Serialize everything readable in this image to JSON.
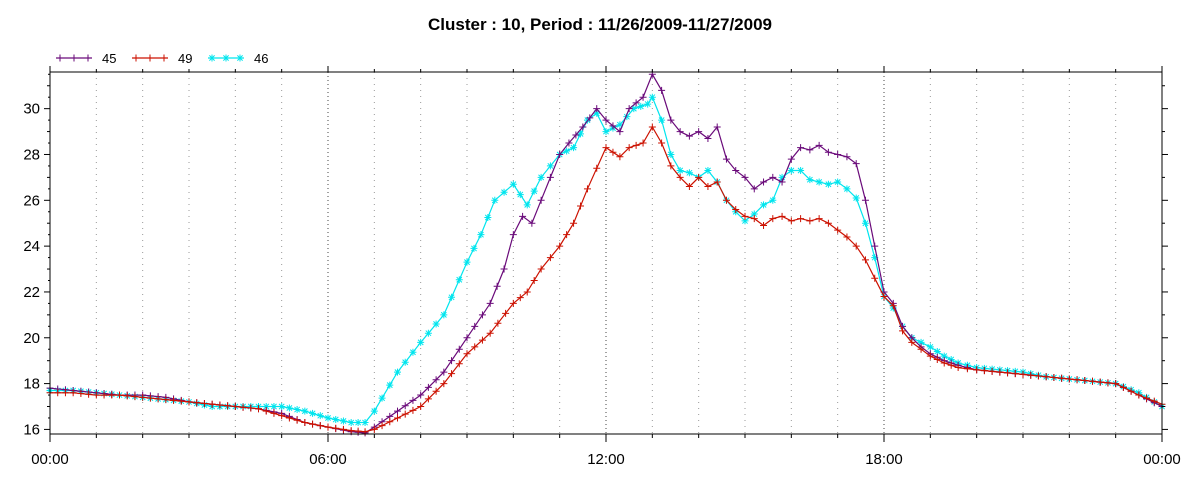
{
  "chart_data": {
    "type": "line",
    "title": "Cluster : 10, Period : 11/26/2009-11/27/2009",
    "xlabel": "",
    "ylabel": "",
    "x_ticks": [
      "00:00",
      "06:00",
      "12:00",
      "18:00",
      "00:00"
    ],
    "x_range_hours": [
      0,
      24
    ],
    "ylim": [
      15.8,
      31.6
    ],
    "y_ticks": [
      16,
      18,
      20,
      22,
      24,
      26,
      28,
      30
    ],
    "grid": "vertical dotted",
    "legend_position": "top-left",
    "series": [
      {
        "name": "45",
        "color": "#6a0a7a",
        "marker": "plus",
        "points": [
          [
            0,
            17.8
          ],
          [
            0.5,
            17.7
          ],
          [
            1,
            17.6
          ],
          [
            1.5,
            17.5
          ],
          [
            2,
            17.5
          ],
          [
            2.5,
            17.4
          ],
          [
            3,
            17.2
          ],
          [
            3.5,
            17.1
          ],
          [
            4,
            17.0
          ],
          [
            4.5,
            16.9
          ],
          [
            5,
            16.7
          ],
          [
            5.5,
            16.3
          ],
          [
            6,
            16.1
          ],
          [
            6.5,
            15.9
          ],
          [
            6.8,
            15.85
          ],
          [
            7.0,
            16.1
          ],
          [
            7.5,
            16.8
          ],
          [
            8,
            17.5
          ],
          [
            8.5,
            18.5
          ],
          [
            9,
            20.0
          ],
          [
            9.5,
            21.5
          ],
          [
            9.8,
            23.0
          ],
          [
            10.0,
            24.5
          ],
          [
            10.2,
            25.3
          ],
          [
            10.4,
            25.0
          ],
          [
            10.6,
            26.0
          ],
          [
            10.8,
            27.0
          ],
          [
            11.0,
            28.0
          ],
          [
            11.2,
            28.5
          ],
          [
            11.5,
            29.2
          ],
          [
            11.8,
            30.0
          ],
          [
            12.0,
            29.5
          ],
          [
            12.3,
            29.0
          ],
          [
            12.5,
            30.0
          ],
          [
            12.8,
            30.5
          ],
          [
            13.0,
            31.5
          ],
          [
            13.2,
            30.8
          ],
          [
            13.4,
            29.5
          ],
          [
            13.6,
            29.0
          ],
          [
            13.8,
            28.8
          ],
          [
            14.0,
            29.0
          ],
          [
            14.2,
            28.7
          ],
          [
            14.4,
            29.2
          ],
          [
            14.6,
            27.8
          ],
          [
            14.8,
            27.3
          ],
          [
            15.0,
            27.0
          ],
          [
            15.2,
            26.5
          ],
          [
            15.4,
            26.8
          ],
          [
            15.6,
            27.0
          ],
          [
            15.8,
            26.8
          ],
          [
            16.0,
            27.8
          ],
          [
            16.2,
            28.3
          ],
          [
            16.4,
            28.2
          ],
          [
            16.6,
            28.4
          ],
          [
            16.8,
            28.1
          ],
          [
            17.0,
            28.0
          ],
          [
            17.2,
            27.9
          ],
          [
            17.4,
            27.6
          ],
          [
            17.6,
            26.0
          ],
          [
            17.8,
            24.0
          ],
          [
            18.0,
            22.0
          ],
          [
            18.2,
            21.5
          ],
          [
            18.4,
            20.5
          ],
          [
            18.6,
            20.0
          ],
          [
            18.8,
            19.6
          ],
          [
            19.0,
            19.3
          ],
          [
            19.3,
            19.0
          ],
          [
            19.6,
            18.8
          ],
          [
            20,
            18.6
          ],
          [
            20.5,
            18.5
          ],
          [
            21,
            18.4
          ],
          [
            21.5,
            18.3
          ],
          [
            22,
            18.2
          ],
          [
            22.5,
            18.1
          ],
          [
            23,
            18.0
          ],
          [
            23.5,
            17.5
          ],
          [
            24,
            17.0
          ]
        ]
      },
      {
        "name": "49",
        "color": "#cc1100",
        "marker": "plus",
        "points": [
          [
            0,
            17.6
          ],
          [
            0.5,
            17.6
          ],
          [
            1,
            17.5
          ],
          [
            1.5,
            17.5
          ],
          [
            2,
            17.4
          ],
          [
            2.5,
            17.3
          ],
          [
            3,
            17.2
          ],
          [
            3.5,
            17.1
          ],
          [
            4,
            17.0
          ],
          [
            4.5,
            16.9
          ],
          [
            5,
            16.6
          ],
          [
            5.5,
            16.3
          ],
          [
            6,
            16.1
          ],
          [
            6.5,
            15.95
          ],
          [
            6.8,
            15.9
          ],
          [
            7.0,
            16.0
          ],
          [
            7.5,
            16.5
          ],
          [
            8,
            17.0
          ],
          [
            8.5,
            18.0
          ],
          [
            9,
            19.3
          ],
          [
            9.5,
            20.2
          ],
          [
            10,
            21.5
          ],
          [
            10.3,
            22.0
          ],
          [
            10.6,
            23.0
          ],
          [
            11,
            24.0
          ],
          [
            11.3,
            25.0
          ],
          [
            11.6,
            26.5
          ],
          [
            12,
            28.3
          ],
          [
            12.3,
            27.9
          ],
          [
            12.5,
            28.3
          ],
          [
            12.8,
            28.5
          ],
          [
            13.0,
            29.2
          ],
          [
            13.2,
            28.5
          ],
          [
            13.4,
            27.5
          ],
          [
            13.6,
            27.0
          ],
          [
            13.8,
            26.6
          ],
          [
            14.0,
            27.0
          ],
          [
            14.2,
            26.6
          ],
          [
            14.4,
            26.8
          ],
          [
            14.6,
            26.0
          ],
          [
            14.8,
            25.6
          ],
          [
            15.0,
            25.3
          ],
          [
            15.2,
            25.2
          ],
          [
            15.4,
            24.9
          ],
          [
            15.6,
            25.2
          ],
          [
            15.8,
            25.3
          ],
          [
            16.0,
            25.1
          ],
          [
            16.2,
            25.2
          ],
          [
            16.4,
            25.1
          ],
          [
            16.6,
            25.2
          ],
          [
            16.8,
            25.0
          ],
          [
            17.0,
            24.7
          ],
          [
            17.2,
            24.4
          ],
          [
            17.4,
            24.0
          ],
          [
            17.6,
            23.4
          ],
          [
            17.8,
            22.6
          ],
          [
            18.0,
            21.8
          ],
          [
            18.2,
            21.4
          ],
          [
            18.4,
            20.3
          ],
          [
            18.6,
            19.8
          ],
          [
            18.8,
            19.5
          ],
          [
            19.0,
            19.2
          ],
          [
            19.3,
            18.9
          ],
          [
            19.6,
            18.7
          ],
          [
            20,
            18.6
          ],
          [
            20.5,
            18.5
          ],
          [
            21,
            18.4
          ],
          [
            21.5,
            18.3
          ],
          [
            22,
            18.2
          ],
          [
            22.5,
            18.1
          ],
          [
            23,
            18.0
          ],
          [
            23.5,
            17.5
          ],
          [
            24,
            17.1
          ]
        ]
      },
      {
        "name": "46",
        "color": "#00e5ee",
        "marker": "star",
        "points": [
          [
            0,
            17.7
          ],
          [
            0.5,
            17.7
          ],
          [
            1,
            17.6
          ],
          [
            1.5,
            17.5
          ],
          [
            2,
            17.4
          ],
          [
            2.5,
            17.3
          ],
          [
            3,
            17.2
          ],
          [
            3.5,
            17.0
          ],
          [
            4,
            17.0
          ],
          [
            4.5,
            17.0
          ],
          [
            5,
            17.0
          ],
          [
            5.5,
            16.8
          ],
          [
            6,
            16.5
          ],
          [
            6.5,
            16.3
          ],
          [
            6.8,
            16.3
          ],
          [
            7.0,
            16.8
          ],
          [
            7.5,
            18.5
          ],
          [
            8,
            19.8
          ],
          [
            8.5,
            21.0
          ],
          [
            9,
            23.3
          ],
          [
            9.3,
            24.5
          ],
          [
            9.6,
            26.0
          ],
          [
            10.0,
            26.7
          ],
          [
            10.3,
            25.8
          ],
          [
            10.6,
            27.0
          ],
          [
            11,
            28.0
          ],
          [
            11.3,
            28.3
          ],
          [
            11.6,
            29.5
          ],
          [
            11.8,
            29.8
          ],
          [
            12,
            29.0
          ],
          [
            12.3,
            29.3
          ],
          [
            12.6,
            30.0
          ],
          [
            12.9,
            30.2
          ],
          [
            13.0,
            30.5
          ],
          [
            13.2,
            29.5
          ],
          [
            13.4,
            28.0
          ],
          [
            13.6,
            27.3
          ],
          [
            13.8,
            27.2
          ],
          [
            14.0,
            27.0
          ],
          [
            14.2,
            27.3
          ],
          [
            14.4,
            26.8
          ],
          [
            14.6,
            26.0
          ],
          [
            14.8,
            25.5
          ],
          [
            15.0,
            25.1
          ],
          [
            15.2,
            25.4
          ],
          [
            15.4,
            25.8
          ],
          [
            15.6,
            26.0
          ],
          [
            15.8,
            27.0
          ],
          [
            16.0,
            27.3
          ],
          [
            16.2,
            27.3
          ],
          [
            16.4,
            26.9
          ],
          [
            16.6,
            26.8
          ],
          [
            16.8,
            26.7
          ],
          [
            17.0,
            26.8
          ],
          [
            17.2,
            26.5
          ],
          [
            17.4,
            26.1
          ],
          [
            17.6,
            25.0
          ],
          [
            17.8,
            23.5
          ],
          [
            18.0,
            21.8
          ],
          [
            18.2,
            21.3
          ],
          [
            18.4,
            20.5
          ],
          [
            18.6,
            20.0
          ],
          [
            18.8,
            19.8
          ],
          [
            19.0,
            19.6
          ],
          [
            19.3,
            19.2
          ],
          [
            19.6,
            18.9
          ],
          [
            20,
            18.7
          ],
          [
            20.5,
            18.6
          ],
          [
            21,
            18.5
          ],
          [
            21.5,
            18.3
          ],
          [
            22,
            18.2
          ],
          [
            22.5,
            18.1
          ],
          [
            23,
            18.0
          ],
          [
            23.5,
            17.6
          ],
          [
            24,
            17.0
          ]
        ]
      }
    ]
  }
}
